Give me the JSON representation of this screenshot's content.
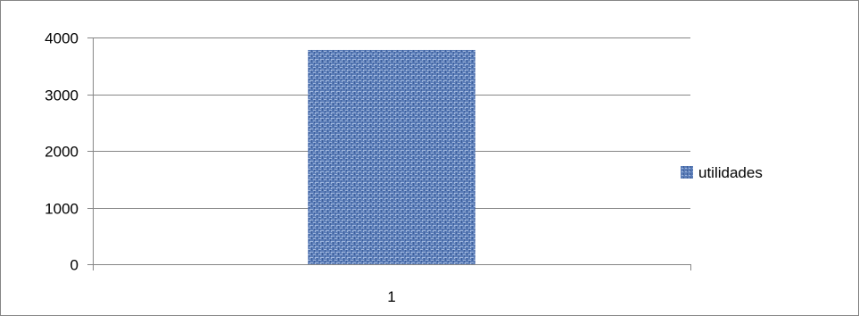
{
  "chart_data": {
    "type": "bar",
    "categories": [
      "1"
    ],
    "series": [
      {
        "name": "utilidades",
        "values": [
          3780
        ]
      }
    ],
    "title": "",
    "xlabel": "",
    "ylabel": "",
    "ylim": [
      0,
      4000
    ],
    "yticks": [
      "0",
      "1000",
      "2000",
      "3000",
      "4000"
    ],
    "grid": true,
    "legend": "right",
    "colors": {
      "bar": "#5b7db8",
      "bar_texture_light": "#9fb6dc",
      "bar_texture_dark": "#3d5e99",
      "grid": "#868686",
      "frame": "#868686"
    }
  }
}
